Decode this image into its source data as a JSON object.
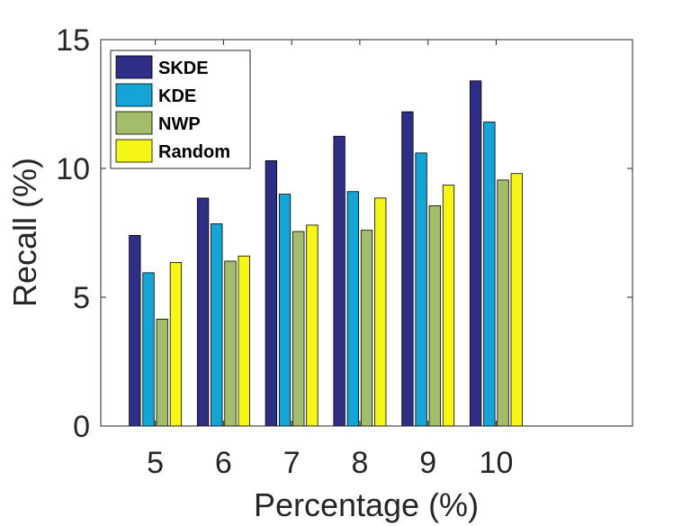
{
  "chart_data": {
    "type": "bar",
    "title": "",
    "xlabel": "Percentage (%)",
    "ylabel": "Recall (%)",
    "categories": [
      "5",
      "6",
      "7",
      "8",
      "9",
      "10"
    ],
    "xlim": [
      4.2,
      12.0
    ],
    "ylim": [
      0,
      15
    ],
    "yticks": [
      "0",
      "5",
      "10",
      "15"
    ],
    "grid": false,
    "legend_position": "top-left",
    "series": [
      {
        "name": "SKDE",
        "color": "#2e2e87",
        "values": [
          7.4,
          8.85,
          10.3,
          11.25,
          12.2,
          13.4
        ]
      },
      {
        "name": "KDE",
        "color": "#15a4d6",
        "values": [
          5.95,
          7.85,
          9.0,
          9.1,
          10.6,
          11.8
        ]
      },
      {
        "name": "NWP",
        "color": "#a3bd6b",
        "values": [
          4.15,
          6.4,
          7.55,
          7.6,
          8.55,
          9.55
        ]
      },
      {
        "name": "Random",
        "color": "#f5f518",
        "values": [
          6.35,
          6.6,
          7.8,
          8.85,
          9.35,
          9.8
        ]
      }
    ]
  }
}
